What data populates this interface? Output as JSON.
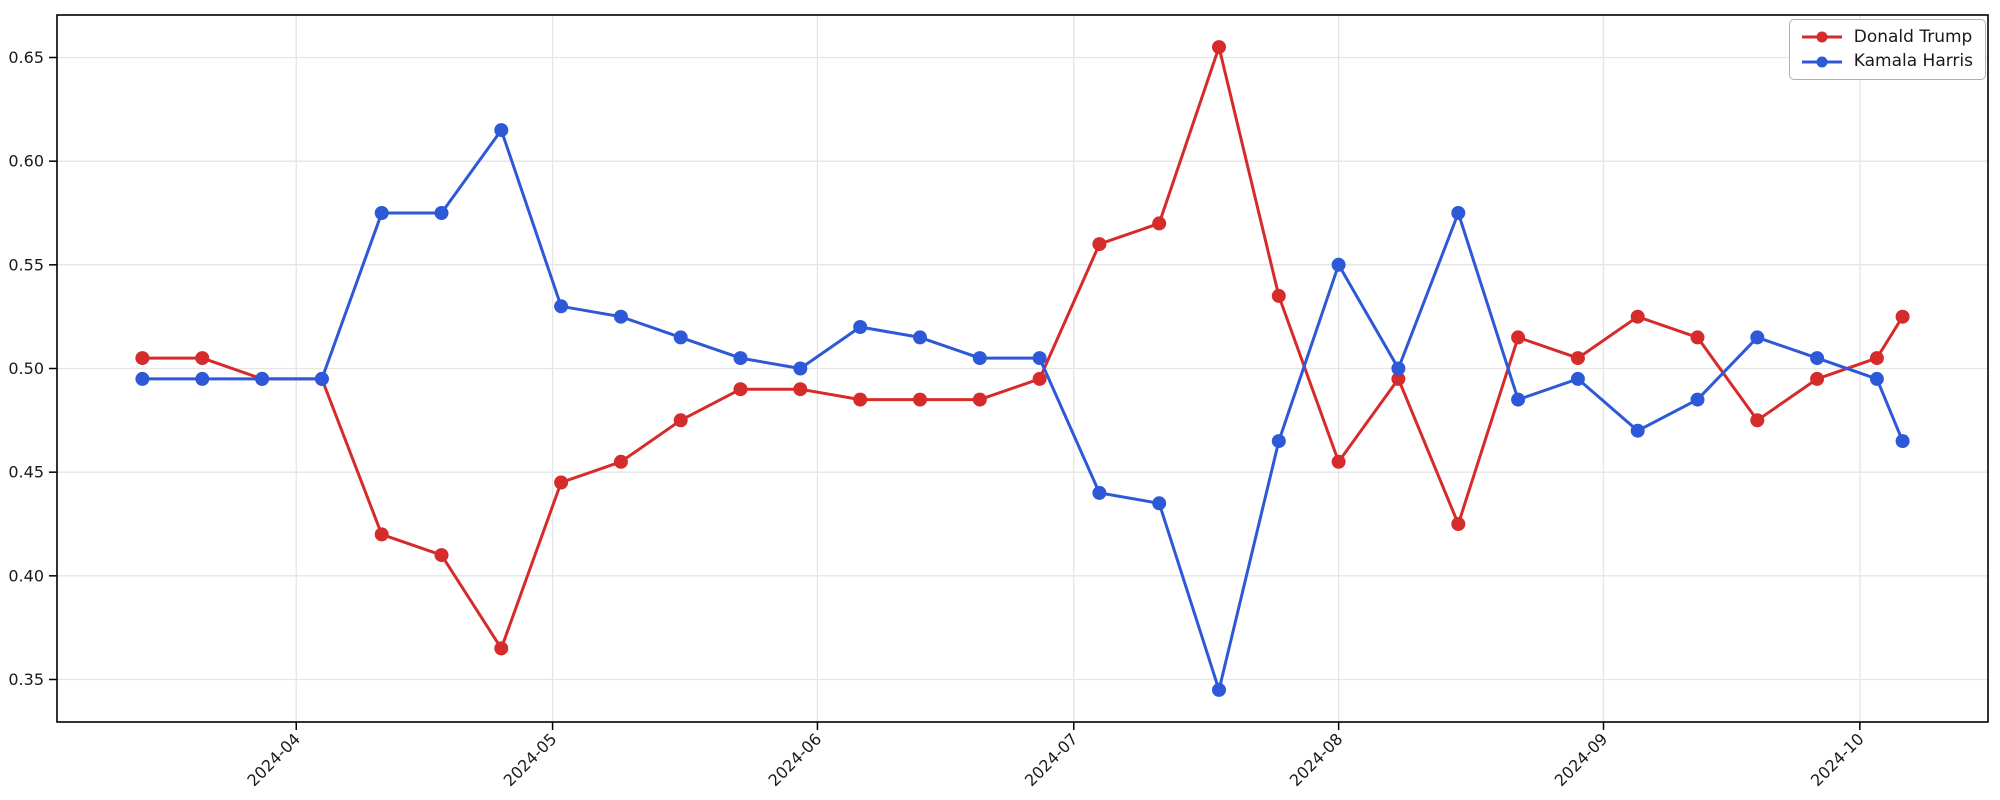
{
  "chart_data": {
    "type": "line",
    "title": "",
    "xlabel": "",
    "ylabel": "",
    "grid": true,
    "legend_position": "upper right",
    "background_color": "#ffffff",
    "gridline_color": "#e5e5e5",
    "spine_color": "#000000",
    "ylim": [
      0.3295,
      0.6705
    ],
    "xlim": [
      "2024-03-04",
      "2024-10-16"
    ],
    "ytick_values": [
      0.35,
      0.4,
      0.45,
      0.5,
      0.55,
      0.6,
      0.65
    ],
    "ytick_labels": [
      "0.35",
      "0.40",
      "0.45",
      "0.50",
      "0.55",
      "0.60",
      "0.65"
    ],
    "xticks": [
      {
        "date": "2024-04-01",
        "label": "2024-04"
      },
      {
        "date": "2024-05-01",
        "label": "2024-05"
      },
      {
        "date": "2024-06-01",
        "label": "2024-06"
      },
      {
        "date": "2024-07-01",
        "label": "2024-07"
      },
      {
        "date": "2024-08-01",
        "label": "2024-08"
      },
      {
        "date": "2024-09-01",
        "label": "2024-09"
      },
      {
        "date": "2024-10-01",
        "label": "2024-10"
      }
    ],
    "x": [
      "2024-03-14",
      "2024-03-21",
      "2024-03-28",
      "2024-04-04",
      "2024-04-11",
      "2024-04-18",
      "2024-04-25",
      "2024-05-02",
      "2024-05-09",
      "2024-05-16",
      "2024-05-23",
      "2024-05-30",
      "2024-06-06",
      "2024-06-13",
      "2024-06-20",
      "2024-06-27",
      "2024-07-04",
      "2024-07-11",
      "2024-07-18",
      "2024-07-25",
      "2024-08-01",
      "2024-08-08",
      "2024-08-15",
      "2024-08-22",
      "2024-08-29",
      "2024-09-05",
      "2024-09-12",
      "2024-09-19",
      "2024-09-26",
      "2024-10-03",
      "2024-10-06"
    ],
    "series": [
      {
        "name": "Donald Trump",
        "color": "#d62b2b",
        "values": [
          0.505,
          0.505,
          0.495,
          0.495,
          0.42,
          0.41,
          0.365,
          0.445,
          0.455,
          0.475,
          0.49,
          0.49,
          0.485,
          0.485,
          0.485,
          0.495,
          0.56,
          0.57,
          0.655,
          0.535,
          0.455,
          0.495,
          0.425,
          0.515,
          0.505,
          0.525,
          0.515,
          0.475,
          0.495,
          0.505,
          0.525
        ]
      },
      {
        "name": "Kamala Harris",
        "color": "#2d59d8",
        "values": [
          0.495,
          0.495,
          0.495,
          0.495,
          0.575,
          0.575,
          0.615,
          0.53,
          0.525,
          0.515,
          0.505,
          0.5,
          0.52,
          0.515,
          0.505,
          0.505,
          0.44,
          0.435,
          0.345,
          0.465,
          0.55,
          0.5,
          0.575,
          0.485,
          0.495,
          0.47,
          0.485,
          0.515,
          0.505,
          0.495,
          0.465
        ]
      }
    ]
  }
}
